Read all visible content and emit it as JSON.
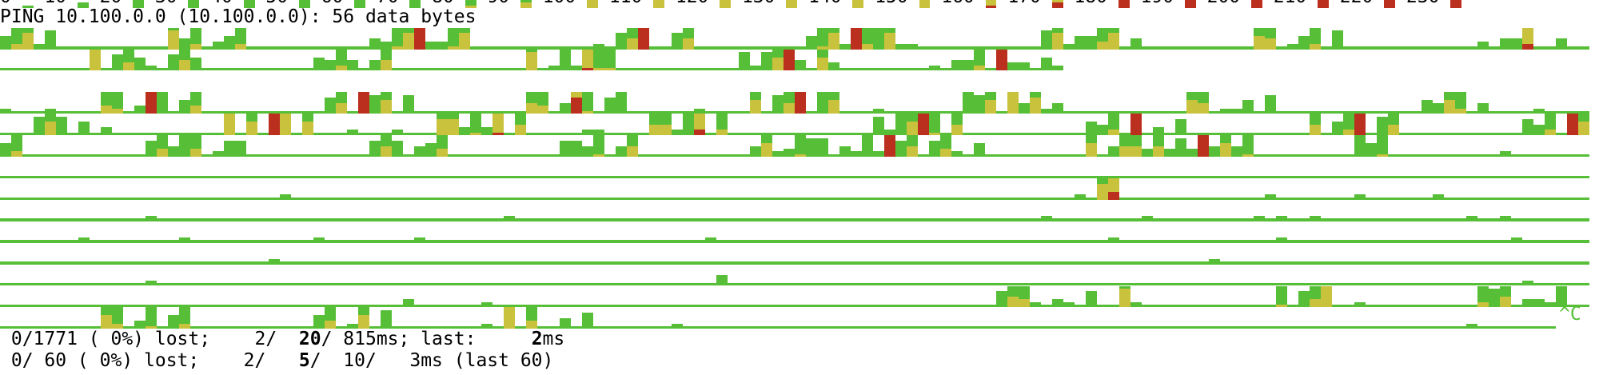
{
  "colors": {
    "green": "#56bf37",
    "yellow": "#c9c23c",
    "red": "#bb2f1f",
    "background": "#ffffff",
    "text": "#000000"
  },
  "legend": [
    {
      "label": "0",
      "code": "0"
    },
    {
      "label": "10",
      "code": "1"
    },
    {
      "label": "20",
      "code": "2"
    },
    {
      "label": "30",
      "code": "3"
    },
    {
      "label": "40",
      "code": "4"
    },
    {
      "label": "50",
      "code": "5"
    },
    {
      "label": "60",
      "code": "6"
    },
    {
      "label": "70",
      "code": "7"
    },
    {
      "label": "80",
      "code": "a"
    },
    {
      "label": "90",
      "code": "b"
    },
    {
      "label": "100",
      "code": "c"
    },
    {
      "label": "110",
      "code": "d"
    },
    {
      "label": "120",
      "code": "e"
    },
    {
      "label": "130",
      "code": "f"
    },
    {
      "label": "140",
      "code": "g"
    },
    {
      "label": "150",
      "code": "h"
    },
    {
      "label": "160",
      "code": "A"
    },
    {
      "label": "170",
      "code": "B"
    },
    {
      "label": "180",
      "code": "C"
    },
    {
      "label": "190",
      "code": "D"
    },
    {
      "label": "200",
      "code": "E"
    },
    {
      "label": "210",
      "code": "F"
    },
    {
      "label": "220",
      "code": "G"
    },
    {
      "label": "230",
      "code": "H"
    }
  ],
  "header": {
    "ping_line": "PING 10.100.0.0 (10.100.0.0): 56 data bytes"
  },
  "bar_encoding": "0-7 green level 1/8..8/8; a-h yellow level over green; A-H red level over yellow",
  "rows": [
    {
      "samples": 142,
      "bars": "0:4 1:b 2:f 3:1 4:6 15:g 16:3 17:b 19:2 20:4 21:b 33:3 34:2 35:a 36:f 37:H 38:2 39:2 40:a 41:f 53:1 55:5 56:d 57:H 60:5 61:d 72:4 73:a 74:f 75:1 76:H 77:b 78:7 79:f 80:1 81:1 93:6 94:f 95:1 96:4 97:4 98:c 99:f 101:3 112:e 113:d 115:1 116:4 117:b 119:6 132:2 134:3 135:3 136:B 139:3"
    },
    {
      "samples": 95,
      "bars": "8:h 10:5 11:c 12:4 13:1 15:5 16:d 17:4 28:4 29:3 30:b 31:3 33:3 34:d 47:g 49:1 50:7 51:1 52:A 53:a 54:a 66:6 67:1 68:6 69:e 70:H 71:3 73:e 74:2 83:1 85:3 86:3 87:b 89:H 90:2 91:2 93:4 94:1"
    },
    {
      "samples": 0,
      "bars": ""
    },
    {
      "samples": 142,
      "bars": "0:1 4:1 9:c 10:b 12:2 13:H 14:7 16:4 17:c 29:5 30:d 32:H 33:6 34:e 36:6 47:d 48:c 50:3 51:F 52:a 54:5 55:7 62:1 67:e 69:6 70:d 71:H 72:0 73:7 74:e 78:1 86:7 87:6 88:e 90:h 91:3 92:f 93:1 94:3 106:e 107:d 109:1 110:1 111:4 113:6 127:4 128:3 129:e 130:b 132:3 137:1"
    },
    {
      "samples": 142,
      "bars": "3:6 4:e 5:6 7:4 9:2 20:h 22:e 24:H 25:h 27:e 31:1 35:1 39:f 40:f 41:2 42:a 43:2 44:A 46:d 52:1 53:1 58:d 59:d 60:1 61:7 62:B 64:b 78:6 79:1 80:7 81:e 82:H 83:a 85:d 97:4 98:3 99:b 101:H 103:2 105:5 117:d 119:4 120:b 121:H 123:6 124:d 136:5 137:3 138:b 140:H 141:e"
    },
    {
      "samples": 142,
      "bars": "0:4 1:b 13:5 14:c 15:3 16:7 17:c 19:1 20:5 21:5 33:5 34:d 35:5 37:3 38:4 39:c 50:5 51:5 52:3 53:a 55:3 56:d 67:3 68:e 69:1 70:2 71:a 72:6 73:6 75:3 76:1 77:7 78:1 79:H 80:5 81:d 83:5 84:c 85:1 87:4 97:e 99:3 100:d 101:d 102:2 103:d 104:2 105:6 106:2 107:H 108:3 109:e 110:3 111:a 121:7 122:4 123:a 134:1"
    },
    {
      "samples": 142,
      "bars": ""
    },
    {
      "samples": 142,
      "bars": "25:1 96:1 98:f 99:C 113:1 121:1 128:1"
    },
    {
      "samples": 142,
      "bars": "13:1 45:1 93:1 102:1 112:1 114:1 117:1 131:1 134:1"
    },
    {
      "samples": 142,
      "bars": "7:1 16:1 28:1 37:1 63:1 99:1 114:1 135:1"
    },
    {
      "samples": 142,
      "bars": "24:1 108:1"
    },
    {
      "samples": 142,
      "bars": "13:1 64:3 136:1"
    },
    {
      "samples": 142,
      "bars": "36:2 43:1 89:5 90:d 91:c 92:1 94:2 95:1 97:5 100:g 101:1 114:a 116:5 117:c 118:h 121:1 132:b 133:6 134:d 136:2 137:2 138:1 139:7"
    },
    {
      "samples": 139,
      "bars": "9:e 10:b 12:2 13:a 15:4 16:b 28:4 29:c 31:1 32:e 34:6 43:1 45:h 47:c 50:3 52:5 60:1 131:1"
    }
  ],
  "interrupt": "^C",
  "status": {
    "line1": [
      {
        "t": " 0/1771 ( 0%) lost;    2/  "
      },
      {
        "t": "20"
      },
      {
        "t": "/ 815ms; last:     "
      },
      {
        "t": "2"
      },
      {
        "t": "ms"
      }
    ],
    "line2": [
      {
        "t": " 0/ 60 ( 0%) lost;    2/   "
      },
      {
        "t": "5"
      },
      {
        "t": "/  10/   3ms (last 60)"
      }
    ]
  }
}
